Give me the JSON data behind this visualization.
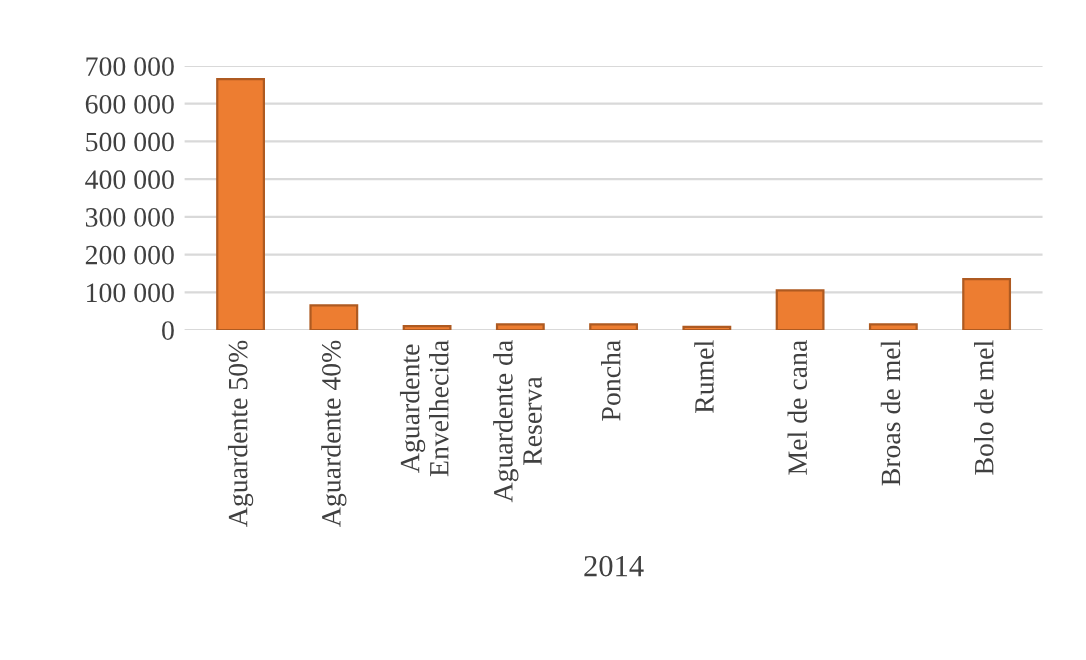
{
  "chart_data": {
    "type": "bar",
    "categories": [
      "Aguardente 50%",
      "Aguardente 40%",
      "Aguardente\nEnvelhecida",
      "Aguardente da\nReserva",
      "Poncha",
      "Rumel",
      "Mel de cana",
      "Broas de mel",
      "Bolo de mel"
    ],
    "values": [
      665000,
      65000,
      10000,
      15000,
      15000,
      8000,
      105000,
      15000,
      135000
    ],
    "color": "#ed7d31",
    "xlabel": "2014",
    "ylim": [
      0,
      700000
    ],
    "yticks": [
      {
        "value": 0,
        "label": "0"
      },
      {
        "value": 100000,
        "label": "100 000"
      },
      {
        "value": 200000,
        "label": "200 000"
      },
      {
        "value": 300000,
        "label": "300 000"
      },
      {
        "value": 400000,
        "label": "400 000"
      },
      {
        "value": 500000,
        "label": "500 000"
      },
      {
        "value": 600000,
        "label": "600 000"
      },
      {
        "value": 700000,
        "label": "700 000"
      }
    ],
    "grid": "y"
  }
}
